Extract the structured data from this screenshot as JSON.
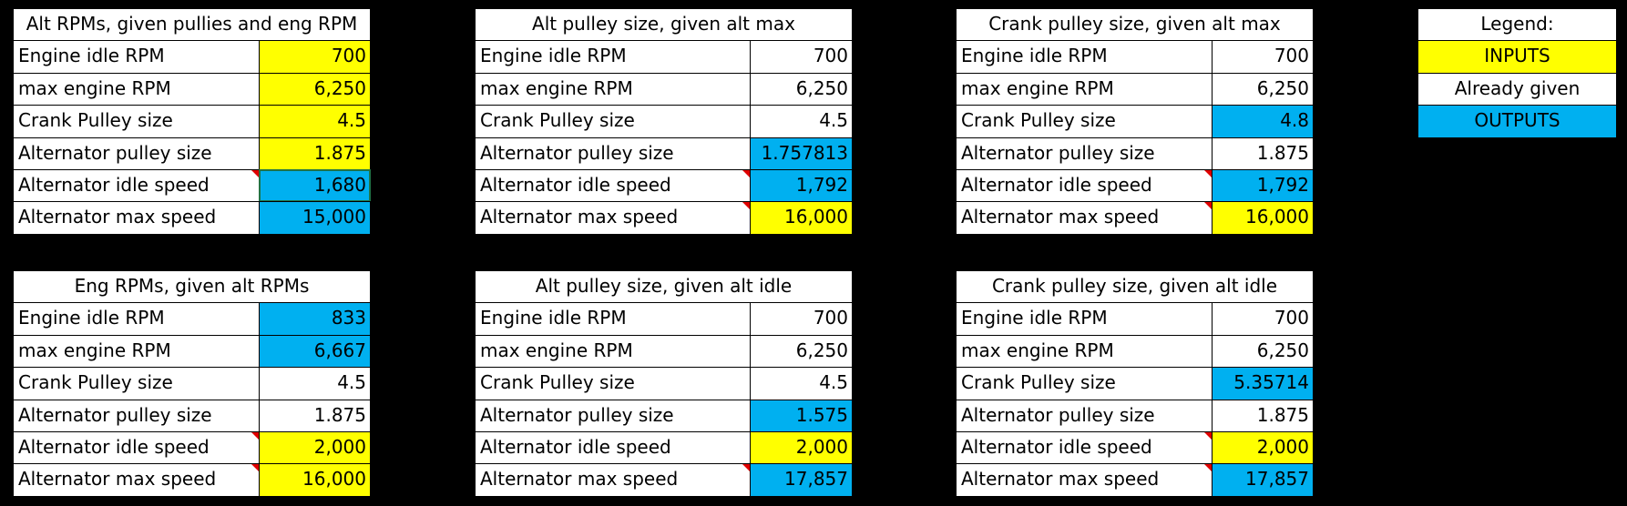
{
  "colors": {
    "input": "#ffff00",
    "output": "#00b0f0",
    "given": "#ffffff"
  },
  "tables": [
    {
      "title": "Alt RPMs, given pullies and eng RPM",
      "rows": [
        {
          "label": "Engine idle RPM",
          "value": "700",
          "role": "input"
        },
        {
          "label": "max engine RPM",
          "value": "6,250",
          "role": "input"
        },
        {
          "label": "Crank Pulley size",
          "value": "4.5",
          "role": "input"
        },
        {
          "label": "Alternator pulley size",
          "value": "1.875",
          "role": "input"
        },
        {
          "label": "Alternator idle speed",
          "value": "1,680",
          "role": "output",
          "note": true
        },
        {
          "label": "Alternator max speed",
          "value": "15,000",
          "role": "output"
        }
      ]
    },
    {
      "title": "Alt pulley size, given alt max",
      "rows": [
        {
          "label": "Engine idle RPM",
          "value": "700",
          "role": "given"
        },
        {
          "label": "max engine RPM",
          "value": "6,250",
          "role": "given"
        },
        {
          "label": "Crank Pulley size",
          "value": "4.5",
          "role": "given"
        },
        {
          "label": "Alternator pulley size",
          "value": "1.757813",
          "role": "output"
        },
        {
          "label": "Alternator idle speed",
          "value": "1,792",
          "role": "output",
          "note": true
        },
        {
          "label": "Alternator max speed",
          "value": "16,000",
          "role": "input",
          "note": true
        }
      ]
    },
    {
      "title": "Crank pulley size, given alt max",
      "rows": [
        {
          "label": "Engine idle RPM",
          "value": "700",
          "role": "given"
        },
        {
          "label": "max engine RPM",
          "value": "6,250",
          "role": "given"
        },
        {
          "label": "Crank Pulley size",
          "value": "4.8",
          "role": "output"
        },
        {
          "label": "Alternator pulley size",
          "value": "1.875",
          "role": "given"
        },
        {
          "label": "Alternator idle speed",
          "value": "1,792",
          "role": "output",
          "note": true
        },
        {
          "label": "Alternator max speed",
          "value": "16,000",
          "role": "input",
          "note": true
        }
      ]
    },
    {
      "title": "Eng RPMs, given alt RPMs",
      "rows": [
        {
          "label": "Engine idle RPM",
          "value": "833",
          "role": "output"
        },
        {
          "label": "max engine RPM",
          "value": "6,667",
          "role": "output"
        },
        {
          "label": "Crank Pulley size",
          "value": "4.5",
          "role": "given"
        },
        {
          "label": "Alternator pulley size",
          "value": "1.875",
          "role": "given"
        },
        {
          "label": "Alternator idle speed",
          "value": "2,000",
          "role": "input",
          "note": true
        },
        {
          "label": "Alternator max speed",
          "value": "16,000",
          "role": "input",
          "note": true
        }
      ]
    },
    {
      "title": "Alt pulley size, given alt idle",
      "rows": [
        {
          "label": "Engine idle RPM",
          "value": "700",
          "role": "given"
        },
        {
          "label": "max engine RPM",
          "value": "6,250",
          "role": "given"
        },
        {
          "label": "Crank Pulley size",
          "value": "4.5",
          "role": "given"
        },
        {
          "label": "Alternator pulley size",
          "value": "1.575",
          "role": "output"
        },
        {
          "label": "Alternator idle speed",
          "value": "2,000",
          "role": "input"
        },
        {
          "label": "Alternator max speed",
          "value": "17,857",
          "role": "output",
          "note": true
        }
      ]
    },
    {
      "title": "Crank pulley size, given alt idle",
      "rows": [
        {
          "label": "Engine idle RPM",
          "value": "700",
          "role": "given"
        },
        {
          "label": "max engine RPM",
          "value": "6,250",
          "role": "given"
        },
        {
          "label": "Crank Pulley size",
          "value": "5.35714",
          "role": "output"
        },
        {
          "label": "Alternator pulley size",
          "value": "1.875",
          "role": "given"
        },
        {
          "label": "Alternator idle speed",
          "value": "2,000",
          "role": "input",
          "note": true
        },
        {
          "label": "Alternator max speed",
          "value": "17,857",
          "role": "output",
          "note": true
        }
      ]
    }
  ],
  "legend": {
    "title": "Legend:",
    "items": [
      {
        "label": "INPUTS",
        "role": "input"
      },
      {
        "label": "Already given",
        "role": "given"
      },
      {
        "label": "OUTPUTS",
        "role": "output"
      }
    ]
  }
}
